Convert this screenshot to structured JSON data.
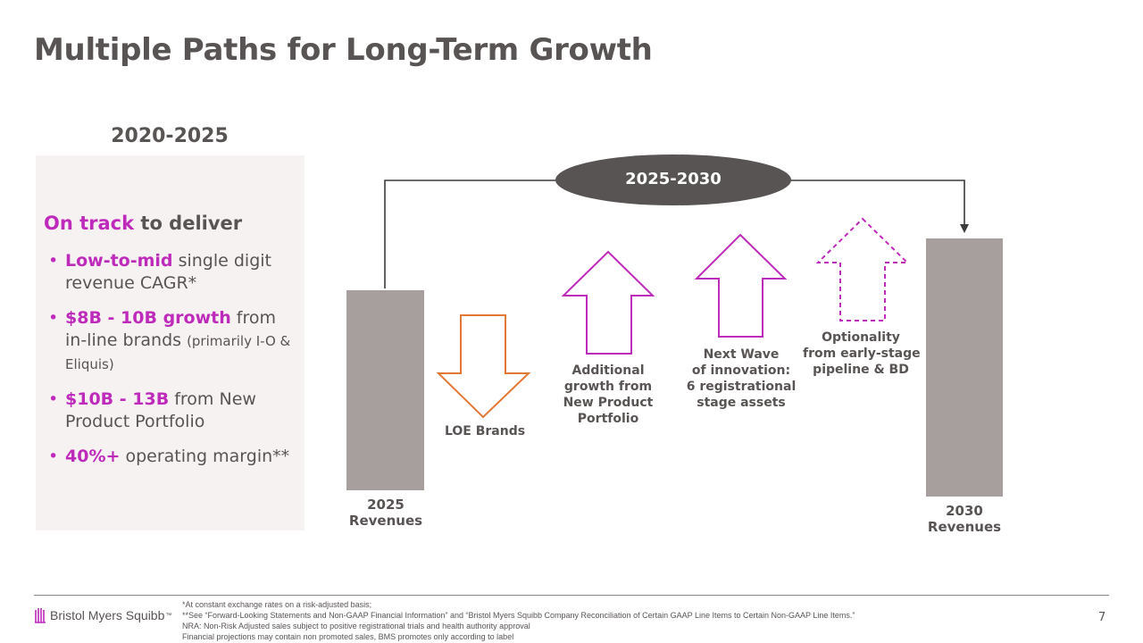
{
  "slide": {
    "title": "Multiple Paths for Long-Term Growth",
    "page_number": "7"
  },
  "left_panel": {
    "period": "2020-2025",
    "heading_highlight": "On track",
    "heading_rest": " to deliver",
    "bullets": [
      {
        "highlight": "Low-to-mid",
        "text": " single digit revenue CAGR*",
        "small": ""
      },
      {
        "highlight": "$8B - 10B growth",
        "text": " from in-line brands ",
        "small": "(primarily I-O & Eliquis)"
      },
      {
        "highlight": "$10B - 13B",
        "text": " from New Product Portfolio",
        "small": ""
      },
      {
        "highlight": "40%+",
        "text": " operating margin**",
        "small": ""
      }
    ]
  },
  "diagram": {
    "period": "2025-2030",
    "start_bar_label": [
      "2025",
      "Revenues"
    ],
    "end_bar_label": [
      "2030",
      "Revenues"
    ],
    "arrows": [
      {
        "id": "loe",
        "direction": "down",
        "style": "solid",
        "color": "#e37735",
        "label": [
          "LOE Brands"
        ]
      },
      {
        "id": "new-product",
        "direction": "up",
        "style": "solid",
        "color": "#be2bbb",
        "label": [
          "Additional",
          "growth from",
          "New Product",
          "Portfolio"
        ]
      },
      {
        "id": "next-wave",
        "direction": "up",
        "style": "solid",
        "color": "#be2bbb",
        "label": [
          "Next Wave",
          "of innovation:",
          "6 registrational",
          "stage assets"
        ]
      },
      {
        "id": "optionality",
        "direction": "up",
        "style": "dashed",
        "color": "#be2bbb",
        "label": [
          "Optionality",
          "from early-stage",
          "pipeline & BD"
        ]
      }
    ],
    "bar_color": "#a79e9e",
    "connector_color": "#3d3a3a"
  },
  "footer": {
    "logo_text": "Bristol Myers Squibb",
    "logo_mark": "™",
    "notes": [
      "*At constant exchange rates on a risk-adjusted basis;",
      "**See “Forward-Looking Statements and Non-GAAP Financial Information” and “Bristol Myers Squibb Company Reconciliation of Certain GAAP Line Items to Certain Non-GAAP Line Items.”",
      "NRA: Non-Risk Adjusted sales subject to positive registrational trials and health authority approval",
      "Financial projections may contain non promoted sales, BMS promotes only according to label"
    ]
  }
}
